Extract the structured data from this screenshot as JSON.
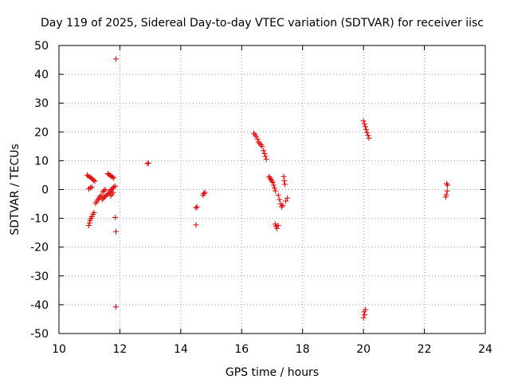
{
  "chart_data": {
    "type": "scatter",
    "title": "Day 119 of 2025, Sidereal Day-to-day VTEC variation (SDTVAR) for receiver iisc",
    "xlabel": "GPS time / hours",
    "ylabel": "SDTVAR / TECUs",
    "xlim": [
      10,
      24
    ],
    "ylim": [
      -50,
      50
    ],
    "xticks": [
      "10",
      "12",
      "14",
      "16",
      "18",
      "20",
      "22",
      "24"
    ],
    "yticks": [
      "50",
      "40",
      "30",
      "20",
      "10",
      "0",
      "-10",
      "-20",
      "-30",
      "-40",
      "-50"
    ],
    "grid": true,
    "marker": "+",
    "color": "#e00000",
    "series": [
      {
        "points": [
          [
            10.93,
            5.0
          ],
          [
            10.97,
            4.6
          ],
          [
            11.02,
            4.3
          ],
          [
            11.06,
            4.0
          ],
          [
            11.1,
            3.6
          ],
          [
            11.14,
            3.2
          ],
          [
            11.18,
            2.9
          ],
          [
            10.98,
            -12.5
          ],
          [
            11.0,
            -11.6
          ],
          [
            11.02,
            -10.7
          ],
          [
            11.05,
            -10.0
          ],
          [
            11.08,
            -9.4
          ],
          [
            11.12,
            -8.6
          ],
          [
            11.15,
            -8.0
          ],
          [
            10.98,
            0.2
          ],
          [
            11.03,
            0.6
          ],
          [
            11.08,
            0.9
          ],
          [
            11.2,
            -4.8
          ],
          [
            11.24,
            -4.2
          ],
          [
            11.28,
            -3.6
          ],
          [
            11.31,
            -3.0
          ],
          [
            11.35,
            -2.5
          ],
          [
            11.39,
            -2.0
          ],
          [
            11.42,
            -3.5
          ],
          [
            11.46,
            -3.0
          ],
          [
            11.5,
            -2.6
          ],
          [
            11.54,
            -2.2
          ],
          [
            11.58,
            -1.8
          ],
          [
            11.62,
            -1.4
          ],
          [
            11.66,
            -1.0
          ],
          [
            11.44,
            -0.8
          ],
          [
            11.48,
            -0.4
          ],
          [
            11.52,
            0.0
          ],
          [
            11.6,
            5.5
          ],
          [
            11.64,
            5.2
          ],
          [
            11.68,
            4.9
          ],
          [
            11.72,
            4.6
          ],
          [
            11.76,
            4.3
          ],
          [
            11.8,
            4.0
          ],
          [
            11.68,
            -0.4
          ],
          [
            11.72,
            0.0
          ],
          [
            11.76,
            0.4
          ],
          [
            11.8,
            0.8
          ],
          [
            11.84,
            1.2
          ],
          [
            11.7,
            -2.2
          ],
          [
            11.74,
            -1.6
          ],
          [
            11.78,
            -1.0
          ],
          [
            11.87,
            45.3
          ],
          [
            11.85,
            -9.7
          ],
          [
            11.87,
            -14.6
          ],
          [
            11.87,
            -40.7
          ],
          [
            12.9,
            9.0
          ],
          [
            12.94,
            9.2
          ],
          [
            14.5,
            -6.4
          ],
          [
            14.53,
            -6.0
          ],
          [
            14.5,
            -12.3
          ],
          [
            14.73,
            -2.0
          ],
          [
            14.76,
            -1.4
          ],
          [
            14.79,
            -1.0
          ],
          [
            16.4,
            19.5
          ],
          [
            16.44,
            19.0
          ],
          [
            16.48,
            18.4
          ],
          [
            16.52,
            17.5
          ],
          [
            16.55,
            16.5
          ],
          [
            16.59,
            16.0
          ],
          [
            16.63,
            15.5
          ],
          [
            16.67,
            15.0
          ],
          [
            16.72,
            13.5
          ],
          [
            16.75,
            12.5
          ],
          [
            16.78,
            11.5
          ],
          [
            16.81,
            10.5
          ],
          [
            16.9,
            4.5
          ],
          [
            16.93,
            4.0
          ],
          [
            16.96,
            3.5
          ],
          [
            16.99,
            3.0
          ],
          [
            17.02,
            2.5
          ],
          [
            17.05,
            1.5
          ],
          [
            17.08,
            0.5
          ],
          [
            17.11,
            -0.5
          ],
          [
            17.1,
            -12.0
          ],
          [
            17.13,
            -12.8
          ],
          [
            17.16,
            -13.5
          ],
          [
            17.2,
            -12.5
          ],
          [
            17.2,
            -2.0
          ],
          [
            17.24,
            -3.5
          ],
          [
            17.28,
            -5.0
          ],
          [
            17.31,
            -6.0
          ],
          [
            17.35,
            -5.5
          ],
          [
            17.38,
            4.5
          ],
          [
            17.4,
            3.0
          ],
          [
            17.42,
            1.8
          ],
          [
            17.45,
            -4.0
          ],
          [
            17.5,
            -3.0
          ],
          [
            20.0,
            23.8
          ],
          [
            20.03,
            22.8
          ],
          [
            20.06,
            21.8
          ],
          [
            20.09,
            20.8
          ],
          [
            20.12,
            19.8
          ],
          [
            20.15,
            18.8
          ],
          [
            20.18,
            17.8
          ],
          [
            20.02,
            -42.5
          ],
          [
            20.04,
            -43.5
          ],
          [
            20.0,
            -44.5
          ],
          [
            20.06,
            -41.7
          ],
          [
            22.73,
            2.0
          ],
          [
            22.76,
            1.5
          ],
          [
            22.75,
            -0.5
          ],
          [
            22.72,
            -1.8
          ],
          [
            22.7,
            -2.6
          ]
        ]
      }
    ]
  }
}
